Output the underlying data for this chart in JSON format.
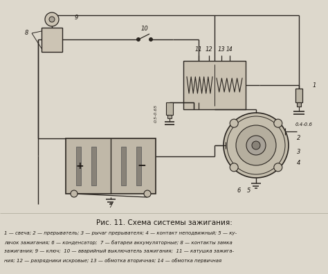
{
  "title": "Рис. 11. Схема системы зажигания:",
  "caption_line1": "1 — свеча; 2 — прерыватель; 3 — рычаг прерывателя; 4 — контакт неподвижный; 5 — ку-",
  "caption_line2": "лачок зажигания; 6 — конденсатор;  7 — батареи аккумуляторные; 8 — контакты замка",
  "caption_line3": "зажигания; 9 — ключ;  10 — аварийный выключатель зажигания;  11 — катушка зажига-",
  "caption_line4": "ния; 12 — разрядники искровые; 13 — обмотка вторичная; 14 — обмотка первичная",
  "bg_color": "#c8c0b0",
  "diagram_bg": "#d4ccbc",
  "paper_bg": "#ddd8cc",
  "line_color": "#2a2520",
  "label_color": "#1a1510",
  "fig_width": 4.74,
  "fig_height": 3.96,
  "dpi": 100
}
